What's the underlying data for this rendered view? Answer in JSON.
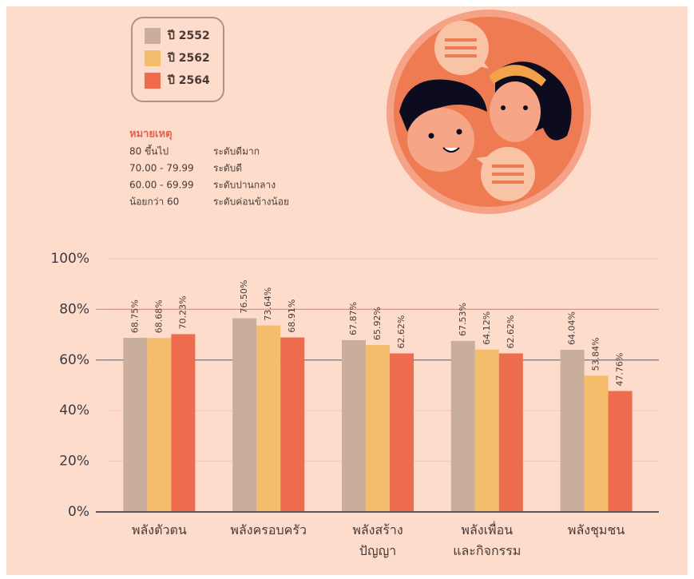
{
  "chart_data": {
    "type": "bar",
    "categories": [
      "พลังตัวตน",
      "พลังครอบครัว",
      "พลังสร้าง\nปัญญา",
      "พลังเพื่อน\nและกิจกรรม",
      "พลังชุมชน"
    ],
    "series": [
      {
        "name": "ปี 2552",
        "color": "#c9ae9c",
        "values": [
          68.75,
          76.5,
          67.87,
          67.53,
          64.04
        ],
        "value_labels": [
          "68.75%",
          "76.50%",
          "67.87%",
          "67.53%",
          "64.04%"
        ]
      },
      {
        "name": "ปี 2562",
        "color": "#f3bd6c",
        "values": [
          68.68,
          73.64,
          65.92,
          64.12,
          53.84
        ],
        "value_labels": [
          "68.68%",
          "73.64%",
          "65.92%",
          "64.12%",
          "53.84%"
        ]
      },
      {
        "name": "ปี 2564",
        "color": "#ee6c4e",
        "values": [
          70.23,
          68.91,
          62.62,
          62.62,
          47.76
        ],
        "value_labels": [
          "70.23%",
          "68.91%",
          "62.62%",
          "62.62%",
          "47.76%"
        ]
      }
    ],
    "ylim": [
      0,
      100
    ],
    "yticks": [
      {
        "value": 0,
        "label": "0%"
      },
      {
        "value": 20,
        "label": "20%"
      },
      {
        "value": 40,
        "label": "40%"
      },
      {
        "value": 60,
        "label": "60%"
      },
      {
        "value": 80,
        "label": "80%"
      },
      {
        "value": 100,
        "label": "100%"
      }
    ],
    "grid": true,
    "reference_lines": [
      {
        "value": 80,
        "color": "#f08a7a"
      },
      {
        "value": 60,
        "color": "#6e6a78"
      }
    ]
  },
  "notes": {
    "title": "หมายเหตุ",
    "rows": [
      [
        "80 ขึ้นไป",
        "ระดับดีมาก"
      ],
      [
        "70.00 - 79.99",
        "ระดับดี"
      ],
      [
        "60.00 - 69.99",
        "ระดับปานกลาง"
      ],
      [
        "น้อยกว่า 60",
        "ระดับค่อนข้างน้อย"
      ]
    ]
  }
}
